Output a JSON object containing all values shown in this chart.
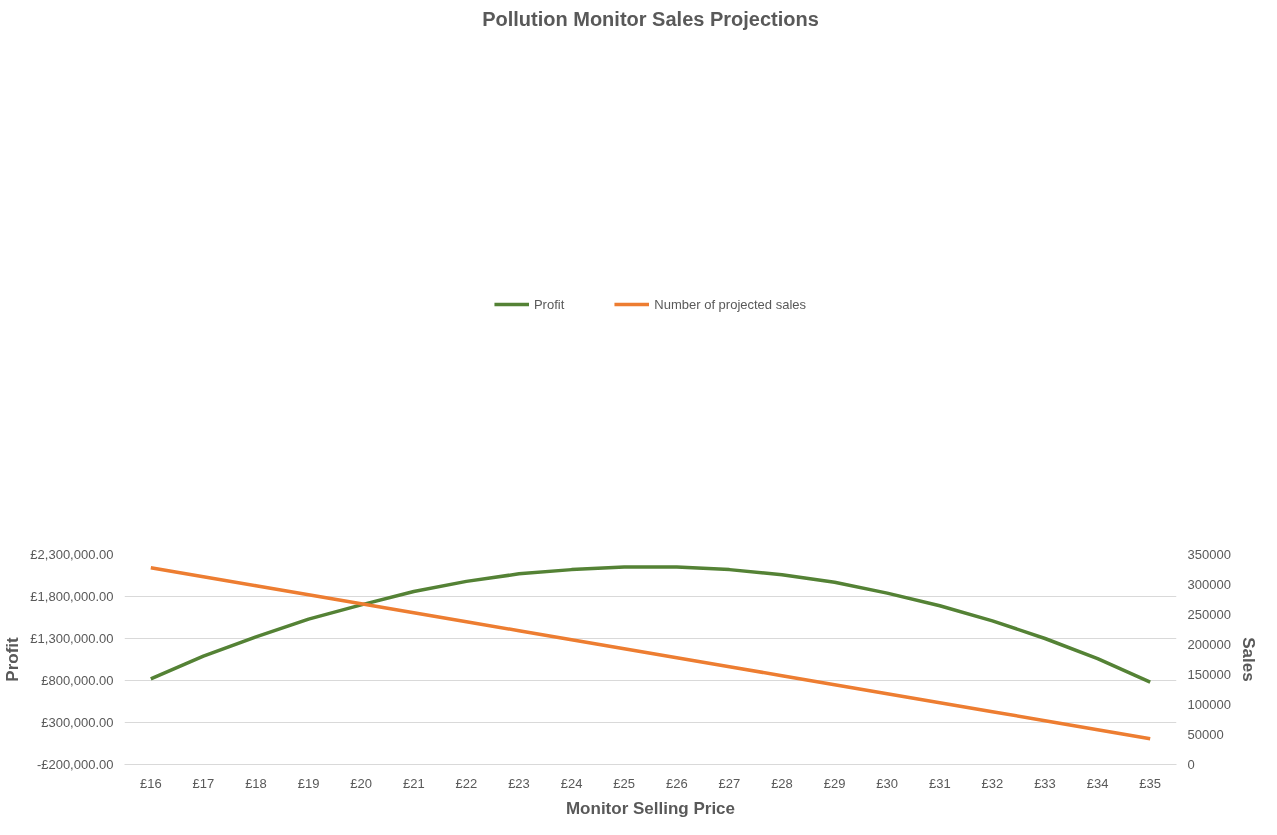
{
  "chart_data": {
    "type": "line",
    "title": "Pollution Monitor Sales Projections",
    "xlabel": "Monitor Selling Price",
    "ylabel": "Profit",
    "y2label": "Sales",
    "categories": [
      "£16",
      "£17",
      "£18",
      "£19",
      "£20",
      "£21",
      "£22",
      "£23",
      "£24",
      "£25",
      "£26",
      "£27",
      "£28",
      "£29",
      "£30",
      "£31",
      "£32",
      "£33",
      "£34",
      "£35"
    ],
    "series": [
      {
        "name": "Profit",
        "color": "#548235",
        "values": [
          820000,
          1090000,
          1320000,
          1530000,
          1700000,
          1860000,
          1980000,
          2070000,
          2120000,
          2150000,
          2150000,
          2120000,
          2060000,
          1970000,
          1840000,
          1690000,
          1510000,
          1300000,
          1060000,
          780000
        ]
      },
      {
        "name": "Number of projected sales",
        "color": "#ed7d31",
        "axis": "y2",
        "values": [
          328000,
          313000,
          298000,
          283000,
          268000,
          253000,
          238000,
          223000,
          208000,
          193000,
          178000,
          163000,
          148000,
          133000,
          118000,
          103000,
          88000,
          73000,
          58000,
          43000
        ]
      }
    ],
    "ylim": [
      -200000,
      2300000
    ],
    "yticks": [
      {
        "value": -200000,
        "label": "-£200,000.00"
      },
      {
        "value": 300000,
        "label": "£300,000.00"
      },
      {
        "value": 800000,
        "label": "£800,000.00"
      },
      {
        "value": 1300000,
        "label": "£1,300,000.00"
      },
      {
        "value": 1800000,
        "label": "£1,800,000.00"
      },
      {
        "value": 2300000,
        "label": "£2,300,000.00"
      }
    ],
    "y2lim": [
      0,
      350000
    ],
    "y2ticks": [
      0,
      50000,
      100000,
      150000,
      200000,
      250000,
      300000,
      350000
    ],
    "grid": "y",
    "legend": "top",
    "marker": "none",
    "line_style": "solid"
  }
}
